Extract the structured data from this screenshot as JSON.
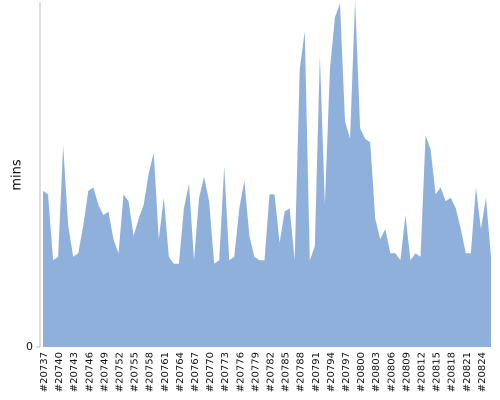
{
  "chart_data": {
    "type": "area",
    "y_label": "mins",
    "color": "#8fb0db",
    "ylim": [
      0,
      100
    ],
    "yticks": [
      0
    ],
    "categories": [
      "#20737",
      null,
      null,
      "#20740",
      null,
      null,
      "#20743",
      null,
      null,
      "#20746",
      null,
      null,
      "#20749",
      null,
      null,
      "#20752",
      null,
      null,
      "#20755",
      null,
      null,
      "#20758",
      null,
      null,
      "#20761",
      null,
      null,
      "#20764",
      null,
      null,
      "#20767",
      null,
      null,
      "#20770",
      null,
      null,
      "#20773",
      null,
      null,
      "#20776",
      null,
      null,
      "#20779",
      null,
      null,
      "#20782",
      null,
      null,
      "#20785",
      null,
      null,
      "#20788",
      null,
      null,
      "#20791",
      null,
      null,
      "#20794",
      null,
      null,
      "#20797",
      null,
      null,
      "#20800",
      null,
      null,
      "#20803",
      null,
      null,
      "#20806",
      null,
      null,
      "#20809",
      null,
      null,
      "#20812",
      null,
      null,
      "#20815",
      null,
      null,
      "#20818",
      null,
      null,
      "#20821",
      null,
      null,
      "#20824",
      null,
      null
    ],
    "values": [
      45,
      44,
      25,
      26,
      58,
      35,
      26,
      27,
      35,
      45,
      46,
      41,
      38,
      39,
      31,
      27,
      44,
      42,
      32,
      37,
      41,
      50,
      56,
      31,
      43,
      26,
      24,
      24,
      40,
      47,
      25,
      43,
      49,
      42,
      24,
      25,
      52,
      25,
      26,
      40,
      48,
      32,
      26,
      25,
      25,
      44,
      44,
      30,
      39,
      40,
      25,
      80,
      91,
      25,
      29,
      84,
      41,
      80,
      95,
      99,
      65,
      60,
      100,
      63,
      60,
      59,
      37,
      31,
      34,
      27,
      27,
      25,
      38,
      25,
      27,
      26,
      61,
      57,
      44,
      46,
      42,
      43,
      40,
      34,
      27,
      27,
      46,
      34,
      43,
      26
    ]
  }
}
